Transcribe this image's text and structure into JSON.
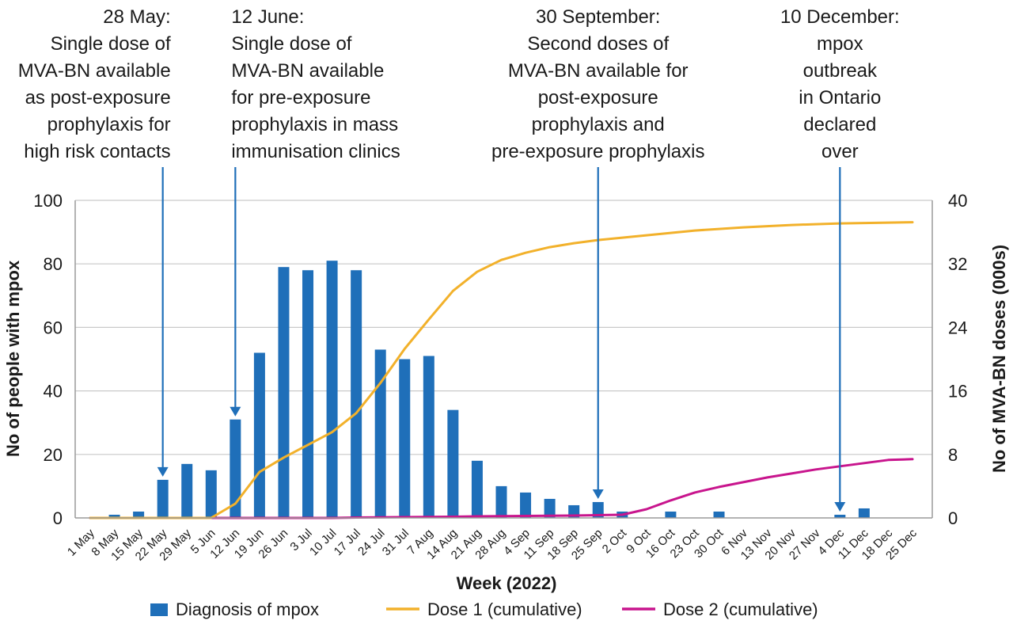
{
  "chart_data": {
    "type": "bar+line",
    "xlabel": "Week (2022)",
    "ylabel_left": "No of people with mpox",
    "ylabel_right": "No of MVA-BN doses (000s)",
    "ylim_left": [
      0,
      100
    ],
    "ylim_right": [
      0,
      40
    ],
    "yticks_left": [
      "0",
      "20",
      "40",
      "60",
      "80",
      "100"
    ],
    "yticks_right": [
      "0",
      "8",
      "16",
      "24",
      "32",
      "40"
    ],
    "categories": [
      "1 May",
      "8 May",
      "15 May",
      "22 May",
      "29 May",
      "5 Jun",
      "12 Jun",
      "19 Jun",
      "26 Jun",
      "3 Jul",
      "10 Jul",
      "17 Jul",
      "24 Jul",
      "31 Jul",
      "7 Aug",
      "14 Aug",
      "21 Aug",
      "28 Aug",
      "4 Sep",
      "11 Sep",
      "18 Sep",
      "25 Sep",
      "2 Oct",
      "9 Oct",
      "16 Oct",
      "23 Oct",
      "30 Oct",
      "6 Nov",
      "13 Nov",
      "20 Nov",
      "27 Nov",
      "4 Dec",
      "11 Dec",
      "18 Dec",
      "25 Dec"
    ],
    "series": [
      {
        "name": "Diagnosis of mpox",
        "kind": "bar",
        "axis": "left",
        "color": "#1f6fb9",
        "values": [
          0,
          1,
          2,
          12,
          17,
          15,
          31,
          52,
          79,
          78,
          81,
          78,
          53,
          50,
          51,
          34,
          18,
          10,
          8,
          6,
          4,
          5,
          2,
          0,
          2,
          0,
          2,
          0,
          0,
          0,
          0,
          1,
          3,
          0,
          0
        ]
      },
      {
        "name": "Dose 1 (cumulative)",
        "kind": "line",
        "axis": "right",
        "color": "#f2b12b",
        "values": [
          0,
          0,
          0,
          0,
          0,
          0,
          1.8,
          5.8,
          7.6,
          9.2,
          10.8,
          13.2,
          17.0,
          21.3,
          25.0,
          28.6,
          31.0,
          32.5,
          33.4,
          34.1,
          34.6,
          35.0,
          35.3,
          35.6,
          35.9,
          36.2,
          36.4,
          36.6,
          36.75,
          36.9,
          37.0,
          37.1,
          37.15,
          37.2,
          37.25
        ]
      },
      {
        "name": "Dose 2 (cumulative)",
        "kind": "line",
        "axis": "right",
        "color": "#c8158d",
        "values": [
          0,
          0,
          0,
          0,
          0,
          0,
          0,
          0,
          0,
          0,
          0,
          0.05,
          0.08,
          0.1,
          0.12,
          0.15,
          0.2,
          0.22,
          0.25,
          0.28,
          0.3,
          0.35,
          0.4,
          1.1,
          2.2,
          3.2,
          3.9,
          4.5,
          5.1,
          5.6,
          6.1,
          6.5,
          6.9,
          7.3,
          7.4
        ]
      }
    ],
    "annotations": [
      {
        "category": "22 May",
        "lines": [
          "28 May:",
          "Single dose of",
          "MVA-BN available",
          "as post-exposure",
          "prophylaxis for",
          "high risk contacts"
        ]
      },
      {
        "category": "12 Jun",
        "lines": [
          "12 June:",
          "Single dose of",
          "MVA-BN available",
          "for pre-exposure",
          "prophylaxis in mass",
          "immunisation clinics"
        ]
      },
      {
        "category": "25 Sep",
        "lines": [
          "30 September:",
          "Second doses of",
          "MVA-BN available for",
          "post-exposure",
          "prophylaxis and",
          "pre-exposure prophylaxis"
        ]
      },
      {
        "category": "4 Dec",
        "lines": [
          "10 December:",
          "mpox",
          "outbreak",
          "in Ontario",
          "declared",
          "over"
        ]
      }
    ],
    "legend_position": "bottom"
  }
}
